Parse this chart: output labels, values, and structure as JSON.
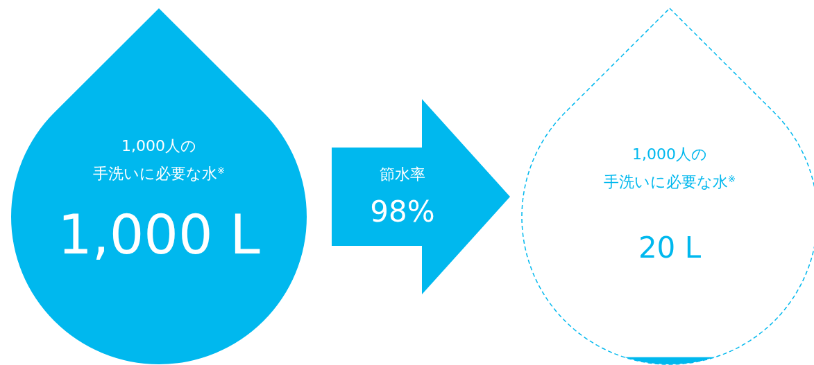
{
  "chart_data": {
    "type": "other",
    "categories": [
      "1,000人の手洗いに必要な水$^{※}$",
      "1,000人の手洗いに必要な水$^{※}$"
    ],
    "values": [
      1000,
      20
    ],
    "value_labels": [
      "1,000 L",
      "20 L"
    ],
    "colors": [
      "#00b8ee",
      "#00b8ee"
    ],
    "annotations": [
      "節水率",
      "98%"
    ]
  }
}
